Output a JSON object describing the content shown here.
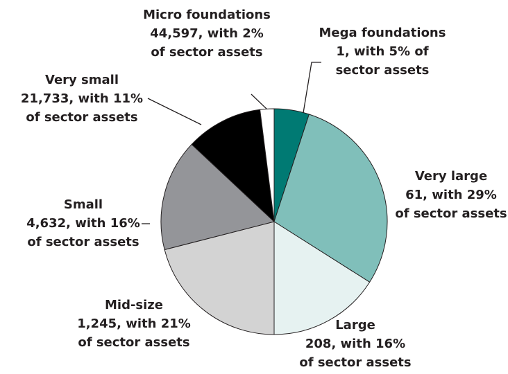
{
  "chart_data": {
    "type": "pie",
    "categories": [
      "Mega foundations",
      "Very large",
      "Large",
      "Mid-size",
      "Small",
      "Very small",
      "Micro foundations"
    ],
    "values": [
      5,
      29,
      16,
      21,
      16,
      11,
      2
    ],
    "value_labels": [
      [
        "1, with 5% of",
        "sector assets"
      ],
      [
        "61, with 29%",
        "of sector assets"
      ],
      [
        "208, with 16%",
        "of sector assets"
      ],
      [
        "1,245, with 21%",
        "of sector assets"
      ],
      [
        "4,632, with 16%",
        "of sector assets"
      ],
      [
        "21,733, with 11%",
        "of sector assets"
      ],
      [
        "44,597, with 2%",
        "of sector assets"
      ]
    ],
    "colors": [
      "#007a73",
      "#80bfba",
      "#e6f2f1",
      "#d3d3d3",
      "#949599",
      "#000000",
      "#ffffff"
    ]
  }
}
